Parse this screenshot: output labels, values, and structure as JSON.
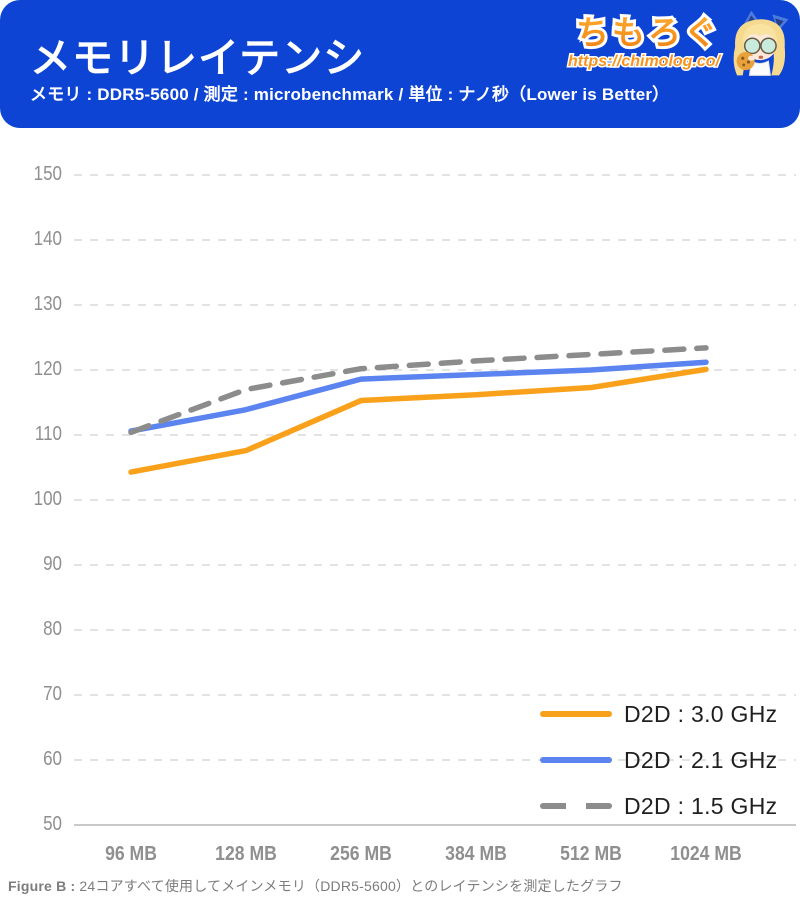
{
  "header": {
    "title": "メモリレイテンシ",
    "subtitle": "メモリ : DDR5-5600 / 測定 : microbenchmark / 単位 : ナノ秒（Lower is Better）",
    "logo": {
      "name": "ちもろぐ",
      "url": "https://chimolog.co/"
    },
    "colors": {
      "background": "#0E44D4",
      "logo_orange": "#F7941E"
    }
  },
  "chart_data": {
    "type": "line",
    "title": "メモリレイテンシ",
    "xlabel": "",
    "ylabel": "ナノ秒 (Lower is Better)",
    "categories": [
      "96 MB",
      "128 MB",
      "256 MB",
      "384 MB",
      "512 MB",
      "1024 MB"
    ],
    "series": [
      {
        "name": "D2D : 3.0 GHz",
        "color": "#F9A11B",
        "style": "solid",
        "values": [
          104.3,
          107.6,
          115.3,
          116.2,
          117.3,
          120.1
        ]
      },
      {
        "name": "D2D : 2.1 GHz",
        "color": "#5B84F1",
        "style": "solid",
        "values": [
          110.6,
          113.9,
          118.6,
          119.3,
          120.0,
          121.2
        ]
      },
      {
        "name": "D2D : 1.5 GHz",
        "color": "#8C8C8C",
        "style": "dashed",
        "values": [
          110.4,
          117.0,
          120.2,
          121.4,
          122.4,
          123.4
        ]
      }
    ],
    "ylim": [
      50,
      150
    ],
    "y_ticks": [
      50,
      60,
      70,
      80,
      90,
      100,
      110,
      120,
      130,
      140,
      150
    ],
    "grid": "horizontal-dashed",
    "legend_position": "bottom-right",
    "colors": {
      "grid": "#DADADA",
      "baseline": "#C9C9C9",
      "axis_text": "#8F8F8F"
    }
  },
  "footer": {
    "prefix": "Figure B : ",
    "text": "24コアすべて使用してメインメモリ（DDR5-5600）とのレイテンシを測定したグラフ"
  }
}
